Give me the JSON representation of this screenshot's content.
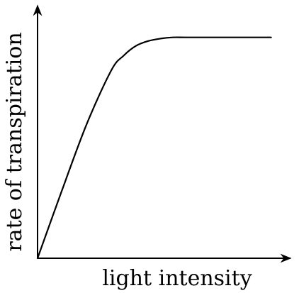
{
  "chart_data": {
    "type": "line",
    "title": "",
    "xlabel": "light intensity",
    "ylabel": "rate of transpiration",
    "xlim": [
      0,
      10
    ],
    "ylim": [
      0,
      10
    ],
    "grid": false,
    "legend": "none",
    "ticks": "none",
    "series": [
      {
        "color": "#000000",
        "x": [
          0,
          1,
          2,
          3,
          3.5,
          4,
          4.5,
          5,
          5.5,
          6,
          7,
          8,
          9,
          9.5
        ],
        "y": [
          0,
          2.8,
          5.5,
          7.7,
          8.3,
          8.7,
          8.9,
          9.0,
          9.05,
          9.05,
          9.05,
          9.05,
          9.05,
          9.05
        ]
      }
    ],
    "colors": {
      "axis": "#000000",
      "line": "#000000",
      "background": "#ffffff"
    }
  }
}
